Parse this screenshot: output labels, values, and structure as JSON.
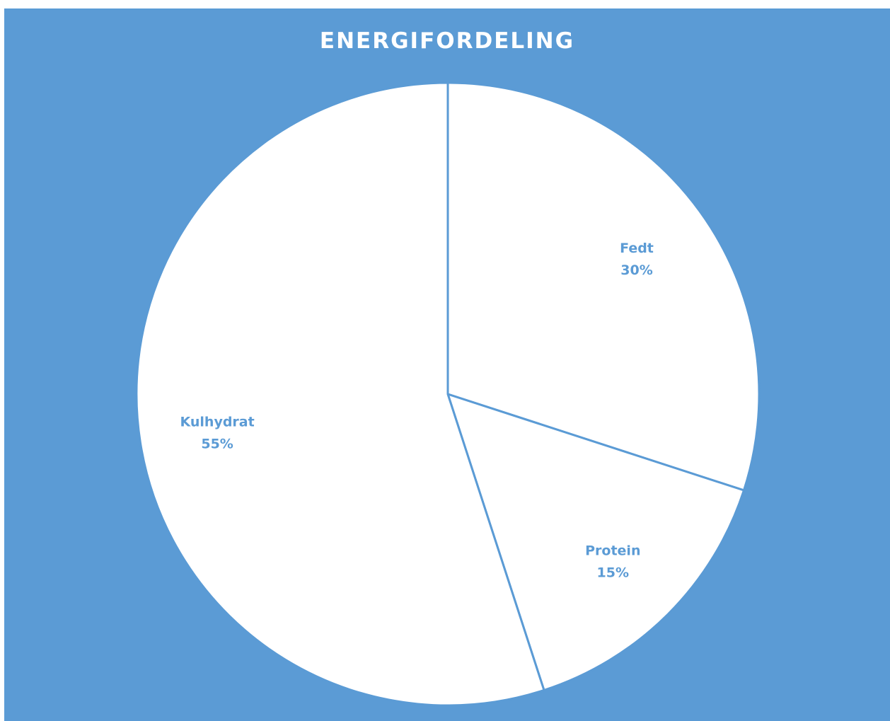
{
  "chart_data": {
    "type": "pie",
    "title": "ENERGIFORDELING",
    "categories": [
      "Fedt",
      "Protein",
      "Kulhydrat"
    ],
    "values": [
      30,
      15,
      55
    ],
    "percent_labels": [
      "30%",
      "15%",
      "55%"
    ],
    "start_angle_deg": 0,
    "direction": "clockwise",
    "legend": "none",
    "colors": {
      "background": "#5b9bd5",
      "slice_fill": "#ffffff",
      "slice_border": "#5b9bd5",
      "label_text": "#5b9bd5",
      "title_text": "#ffffff"
    }
  }
}
